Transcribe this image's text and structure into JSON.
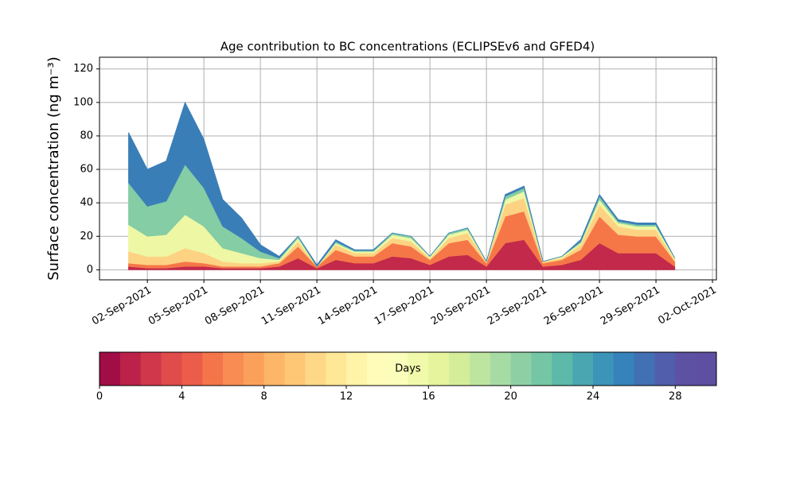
{
  "chart_data": {
    "type": "stacked_area",
    "title": "Age contribution to BC concentrations (ECLIPSEv6 and GFED4)",
    "y_label": "Surface concentration (ng m⁻³)",
    "x": [
      "2021-09-01",
      "2021-09-02",
      "2021-09-03",
      "2021-09-04",
      "2021-09-05",
      "2021-09-06",
      "2021-09-07",
      "2021-09-08",
      "2021-09-09",
      "2021-09-10",
      "2021-09-11",
      "2021-09-12",
      "2021-09-13",
      "2021-09-14",
      "2021-09-15",
      "2021-09-16",
      "2021-09-17",
      "2021-09-18",
      "2021-09-19",
      "2021-09-20",
      "2021-09-21",
      "2021-09-22",
      "2021-09-23",
      "2021-09-24",
      "2021-09-25",
      "2021-09-26",
      "2021-09-27",
      "2021-09-28",
      "2021-09-29",
      "2021-09-30"
    ],
    "series": [
      {
        "color": "#c2294a",
        "values": [
          2,
          1,
          1,
          2,
          2,
          1,
          1,
          1,
          2,
          7,
          1,
          6,
          4,
          4,
          8,
          7,
          3,
          8,
          9,
          2,
          16,
          18,
          2,
          3,
          6,
          16,
          10,
          10,
          10,
          2
        ]
      },
      {
        "color": "#f57748",
        "values": [
          2,
          2,
          2,
          3,
          2,
          1,
          1,
          1,
          2,
          7,
          1,
          6,
          4,
          4,
          8,
          7,
          3,
          8,
          9,
          2,
          16,
          17,
          2,
          3,
          6,
          16,
          11,
          10,
          10,
          3
        ]
      },
      {
        "color": "#fdd283",
        "values": [
          7,
          5,
          5,
          8,
          6,
          3,
          2,
          2,
          1,
          3,
          0,
          3,
          2,
          2,
          3,
          3,
          1,
          3,
          4,
          1,
          7,
          8,
          1,
          1,
          3,
          7,
          5,
          4,
          4,
          1
        ]
      },
      {
        "color": "#eef7a4",
        "values": [
          16,
          12,
          13,
          20,
          16,
          8,
          6,
          3,
          1,
          2,
          0,
          1,
          1,
          1,
          2,
          2,
          1,
          2,
          2,
          0,
          3,
          4,
          0,
          1,
          1,
          3,
          2,
          2,
          2,
          1
        ]
      },
      {
        "color": "#84cda5",
        "values": [
          25,
          18,
          20,
          30,
          23,
          13,
          9,
          4,
          1,
          1,
          0,
          1,
          0.5,
          0.5,
          1,
          1,
          0,
          1,
          1,
          0,
          2,
          2,
          0,
          0,
          1,
          2,
          1,
          1,
          1,
          0
        ]
      },
      {
        "color": "#3a7eb8",
        "values": [
          30,
          22,
          24,
          37,
          29,
          16,
          12,
          4,
          1,
          0,
          1,
          1,
          0.5,
          0.5,
          0,
          0,
          0,
          0,
          0,
          0,
          1,
          1,
          0,
          0,
          1,
          1,
          1,
          1,
          1,
          0
        ]
      }
    ],
    "xlim": [
      "2021-08-30T11:00",
      "2021-10-02T05:00"
    ],
    "xticks": [
      {
        "value": "2021-09-02",
        "label": "02-Sep-2021"
      },
      {
        "value": "2021-09-05",
        "label": "05-Sep-2021"
      },
      {
        "value": "2021-09-08",
        "label": "08-Sep-2021"
      },
      {
        "value": "2021-09-11",
        "label": "11-Sep-2021"
      },
      {
        "value": "2021-09-14",
        "label": "14-Sep-2021"
      },
      {
        "value": "2021-09-17",
        "label": "17-Sep-2021"
      },
      {
        "value": "2021-09-20",
        "label": "20-Sep-2021"
      },
      {
        "value": "2021-09-23",
        "label": "23-Sep-2021"
      },
      {
        "value": "2021-09-26",
        "label": "26-Sep-2021"
      },
      {
        "value": "2021-09-29",
        "label": "29-Sep-2021"
      },
      {
        "value": "2021-10-02",
        "label": "02-Oct-2021"
      }
    ],
    "ylim": [
      -6,
      127
    ],
    "yticks": [
      0,
      20,
      40,
      60,
      80,
      100,
      120
    ],
    "grid": true,
    "colorbar": {
      "label": "Days",
      "lim": [
        0,
        30
      ],
      "ticks": [
        0,
        4,
        8,
        12,
        16,
        20,
        24,
        28
      ],
      "colors": [
        "#a00e45",
        "#bb2149",
        "#d0374b",
        "#e04b4b",
        "#eb5d4a",
        "#f47549",
        "#f88c52",
        "#fba05b",
        "#fdb567",
        "#fec776",
        "#fed886",
        "#fee796",
        "#fff4a8",
        "#fffbb8",
        "#fbfdba",
        "#f1f9aa",
        "#e5f49d",
        "#d4ed9b",
        "#bee5a0",
        "#a7dba4",
        "#8ed0a4",
        "#74c6a5",
        "#5db9a9",
        "#4aa7b1",
        "#3c94b9",
        "#3682ba",
        "#4270b4",
        "#505eab",
        "#5c51a3",
        "#5e4fa2"
      ]
    }
  }
}
